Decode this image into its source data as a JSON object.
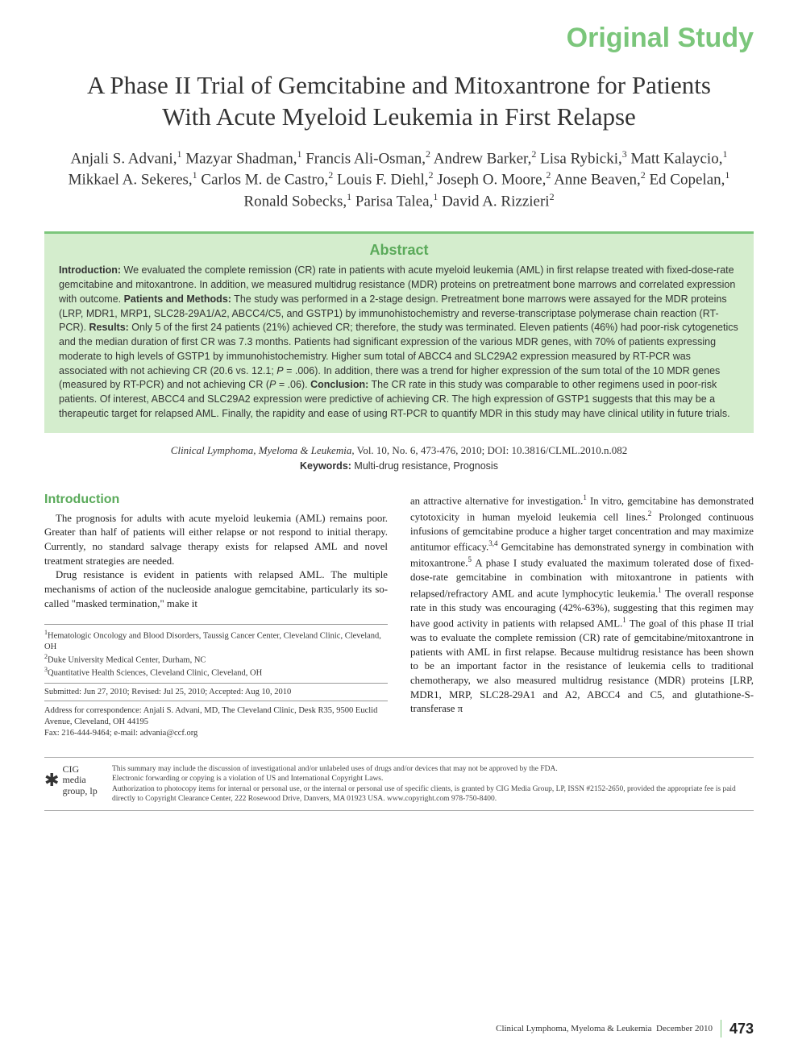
{
  "header": {
    "label": "Original Study"
  },
  "title": "A Phase II Trial of Gemcitabine and Mitoxantrone for Patients With Acute Myeloid Leukemia in First Relapse",
  "authors_html": "Anjali S. Advani,<sup>1</sup> Mazyar Shadman,<sup>1</sup> Francis Ali-Osman,<sup>2</sup> Andrew Barker,<sup>2</sup> Lisa Rybicki,<sup>3</sup> Matt Kalaycio,<sup>1</sup> Mikkael A. Sekeres,<sup>1</sup> Carlos M. de Castro,<sup>2</sup> Louis F. Diehl,<sup>2</sup> Joseph O. Moore,<sup>2</sup> Anne Beaven,<sup>2</sup> Ed Copelan,<sup>1</sup> Ronald Sobecks,<sup>1</sup> Parisa Talea,<sup>1</sup> David A. Rizzieri<sup>2</sup>",
  "abstract": {
    "heading": "Abstract",
    "body_html": "<b>Introduction:</b> We evaluated the complete remission (CR) rate in patients with acute myeloid leukemia (AML) in first relapse treated with fixed-dose-rate gemcitabine and mitoxantrone. In addition, we measured multidrug resistance (MDR) proteins on pretreatment bone marrows and correlated expression with outcome. <b>Patients and Methods:</b> The study was performed in a 2-stage design. Pretreatment bone marrows were assayed for the MDR proteins (LRP, MDR1, MRP1, SLC28-29A1/A2, ABCC4/C5, and GSTP1) by immunohistochemistry and reverse-transcriptase polymerase chain reaction (RT-PCR). <b>Results:</b> Only 5 of the first 24 patients (21%) achieved CR; therefore, the study was terminated. Eleven patients (46%) had poor-risk cytogenetics and the median duration of first CR was 7.3 months. Patients had significant expression of the various MDR genes, with 70% of patients expressing moderate to high levels of GSTP1 by immunohistochemistry. Higher sum total of ABCC4 and SLC29A2 expression measured by RT-PCR was associated with not achieving CR (20.6 vs. 12.1; <i>P</i> = .006). In addition, there was a trend for higher expression of the sum total of the 10 MDR genes (measured by RT-PCR) and not achieving CR (<i>P</i> = .06). <b>Conclusion:</b> The CR rate in this study was comparable to other regimens used in poor-risk patients. Of interest, ABCC4 and SLC29A2 expression were predictive of achieving CR. The high expression of GSTP1 suggests that this may be a therapeutic target for relapsed AML. Finally, the rapidity and ease of using RT-PCR to quantify MDR in this study may have clinical utility in future trials."
  },
  "citation_html": "<i>Clinical Lymphoma, Myeloma & Leukemia,</i> Vol. 10, No. 6, 473-476, 2010; DOI: 10.3816/CLML.2010.n.082",
  "keywords_html": "<b>Keywords:</b> Multi-drug resistance, Prognosis",
  "intro": {
    "heading": "Introduction",
    "p1": "The prognosis for adults with acute myeloid leukemia (AML) remains poor. Greater than half of patients will either relapse or not respond to initial therapy. Currently, no standard salvage therapy exists for relapsed AML and novel treatment strategies are needed.",
    "p2": "Drug resistance is evident in patients with relapsed AML. The multiple mechanisms of action of the nucleoside analogue gemcitabine, particularly its so-called \"masked termination,\" make it",
    "col2_html": "an attractive alternative for investigation.<sup>1</sup> In vitro, gemcitabine has demonstrated cytotoxicity in human myeloid leukemia cell lines.<sup>2</sup> Prolonged continuous infusions of gemcitabine produce a higher target concentration and may maximize antitumor efficacy.<sup>3,4</sup> Gemcitabine has demonstrated synergy in combination with mitoxantrone.<sup>5</sup> A phase I study evaluated the maximum tolerated dose of fixed-dose-rate gemcitabine in combination with mitoxantrone in patients with relapsed/refractory AML and acute lymphocytic leukemia.<sup>1</sup> The overall response rate in this study was encouraging (42%-63%), suggesting that this regimen may have good activity in patients with relapsed AML.<sup>1</sup> The goal of this phase II trial was to evaluate the complete remission (CR) rate of gemcitabine/mitoxantrone in patients with AML in first relapse. Because multidrug resistance has been shown to be an important factor in the resistance of leukemia cells to traditional chemotherapy, we also measured multidrug resistance (MDR) proteins [LRP, MDR1, MRP, SLC28-29A1 and A2, ABCC4 and C5, and glutathione-S-transferase π"
  },
  "affiliations_html": "<sup>1</sup>Hematologic Oncology and Blood Disorders, Taussig Cancer Center, Cleveland Clinic, Cleveland, OH<br><sup>2</sup>Duke University Medical Center, Durham, NC<br><sup>3</sup>Quantitative Health Sciences, Cleveland Clinic, Cleveland, OH",
  "submitted": "Submitted: Jun 27, 2010; Revised: Jul 25, 2010; Accepted: Aug 10, 2010",
  "correspondence": "Address for correspondence: Anjali S. Advani, MD, The Cleveland Clinic, Desk R35, 9500 Euclid Avenue, Cleveland, OH 44195\nFax: 216-444-9464; e-mail: advania@ccf.org",
  "footer": {
    "logo_text": "CIG\nmedia\ngroup, lp",
    "disclaimer": "This summary may include the discussion of investigational and/or unlabeled uses of drugs and/or devices that may not be approved by the FDA.\nElectronic forwarding or copying is a violation of US and International Copyright Laws.\nAuthorization to photocopy items for internal or personal use, or the internal or personal use of specific clients, is granted by CIG Media Group, LP, ISSN #2152-2650, provided the appropriate fee is paid directly to Copyright Clearance Center, 222 Rosewood Drive, Danvers, MA 01923 USA. www.copyright.com 978-750-8400."
  },
  "page_footer": {
    "journal": "Clinical Lymphoma, Myeloma & Leukemia",
    "date": "December 2010",
    "page": "473"
  },
  "colors": {
    "green_accent": "#7bc67b",
    "green_heading": "#5aaa5a",
    "abstract_bg": "#d4edcd"
  }
}
